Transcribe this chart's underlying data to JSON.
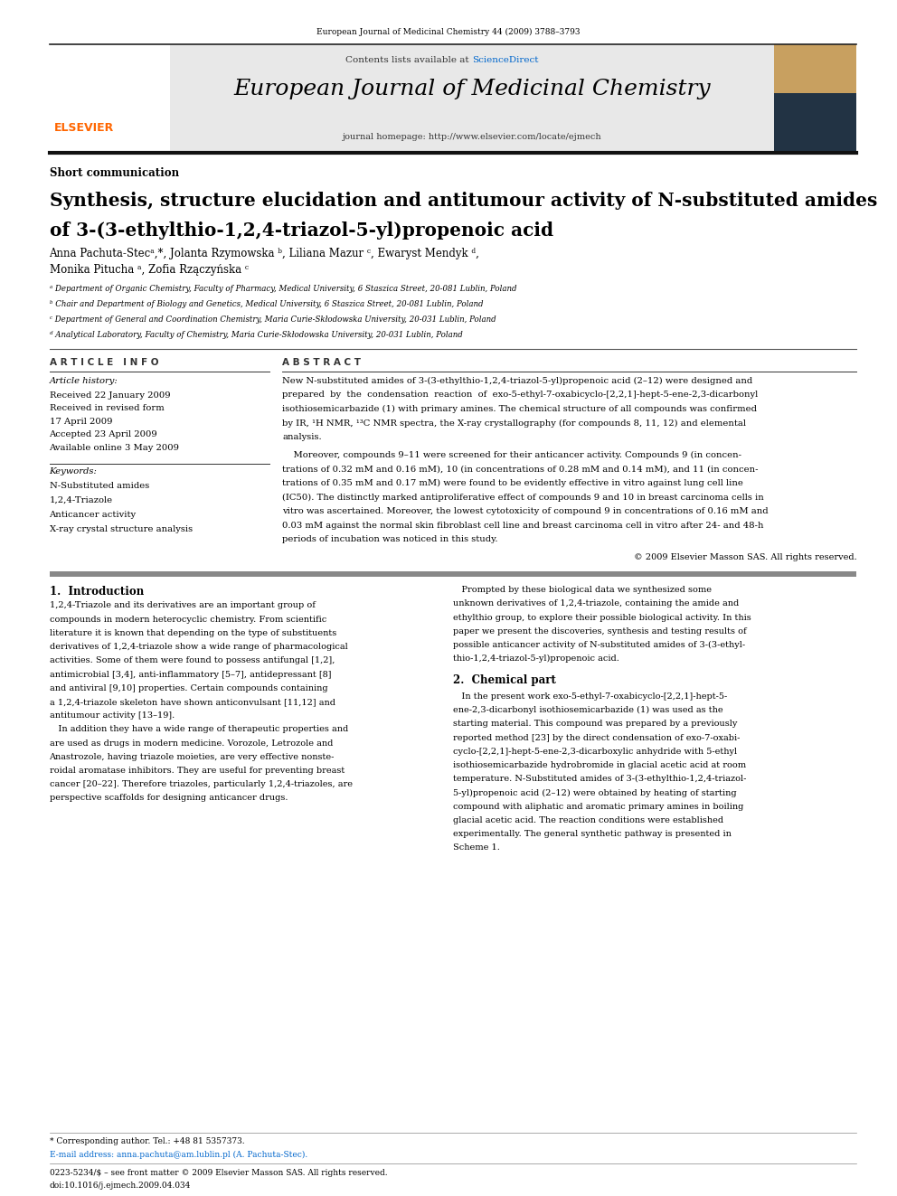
{
  "page_width": 9.92,
  "page_height": 13.23,
  "bg_color": "#ffffff",
  "top_header_text": "European Journal of Medicinal Chemistry 44 (2009) 3788–3793",
  "journal_title": "European Journal of Medicinal Chemistry",
  "contents_text": "Contents lists available at",
  "sciencedirect_text": "ScienceDirect",
  "homepage_text": "journal homepage: http://www.elsevier.com/locate/ejmech",
  "section_label": "Short communication",
  "article_title_line1": "Synthesis, structure elucidation and antitumour activity of N-substituted amides",
  "article_title_line2": "of 3-(3-ethylthio-1,2,4-triazol-5-yl)propenoic acid",
  "authors": "Anna Pachuta-Stecᵃ,*, Jolanta Rzymowska ᵇ, Liliana Mazur ᶜ, Ewaryst Mendyk ᵈ,",
  "authors2": "Monika Pitucha ᵃ, Zofia Rzączyńska ᶜ",
  "affil_a": "ᵃ Department of Organic Chemistry, Faculty of Pharmacy, Medical University, 6 Staszica Street, 20-081 Lublin, Poland",
  "affil_b": "ᵇ Chair and Department of Biology and Genetics, Medical University, 6 Staszica Street, 20-081 Lublin, Poland",
  "affil_c": "ᶜ Department of General and Coordination Chemistry, Maria Curie-Skłodowska University, 20-031 Lublin, Poland",
  "affil_d": "ᵈ Analytical Laboratory, Faculty of Chemistry, Maria Curie-Skłodowska University, 20-031 Lublin, Poland",
  "article_info_title": "A R T I C L E   I N F O",
  "abstract_title": "A B S T R A C T",
  "article_history_label": "Article history:",
  "received1": "Received 22 January 2009",
  "received2": "Received in revised form",
  "received2b": "17 April 2009",
  "accepted": "Accepted 23 April 2009",
  "available": "Available online 3 May 2009",
  "keywords_label": "Keywords:",
  "kw1": "N-Substituted amides",
  "kw2": "1,2,4-Triazole",
  "kw3": "Anticancer activity",
  "kw4": "X-ray crystal structure analysis",
  "abstract_para1": "New N-substituted amides of 3-(3-ethylthio-1,2,4-triazol-5-yl)propenoic acid (2–12) were designed and\nprepared  by  the  condensation  reaction  of  exo-5-ethyl-7-oxabicyclo-[2,2,1]-hept-5-ene-2,3-dicarbonyl\nisothiosemicarbazide (1) with primary amines. The chemical structure of all compounds was confirmed\nby IR, ¹H NMR, ¹³C NMR spectra, the X-ray crystallography (for compounds 8, 11, 12) and elemental\nanalysis.",
  "abstract_para2": "    Moreover, compounds 9–11 were screened for their anticancer activity. Compounds 9 (in concen-\ntrations of 0.32 mM and 0.16 mM), 10 (in concentrations of 0.28 mM and 0.14 mM), and 11 (in concen-\ntrations of 0.35 mM and 0.17 mM) were found to be evidently effective in vitro against lung cell line\n(IC50). The distinctly marked antiproliferative effect of compounds 9 and 10 in breast carcinoma cells in\nvitro was ascertained. Moreover, the lowest cytotoxicity of compound 9 in concentrations of 0.16 mM and\n0.03 mM against the normal skin fibroblast cell line and breast carcinoma cell in vitro after 24- and 48-h\nperiods of incubation was noticed in this study.",
  "copyright_text": "© 2009 Elsevier Masson SAS. All rights reserved.",
  "intro_title": "1.  Introduction",
  "intro_col1_lines": [
    "1,2,4-Triazole and its derivatives are an important group of",
    "compounds in modern heterocyclic chemistry. From scientific",
    "literature it is known that depending on the type of substituents",
    "derivatives of 1,2,4-triazole show a wide range of pharmacological",
    "activities. Some of them were found to possess antifungal [1,2],",
    "antimicrobial [3,4], anti-inflammatory [5–7], antidepressant [8]",
    "and antiviral [9,10] properties. Certain compounds containing",
    "a 1,2,4-triazole skeleton have shown anticonvulsant [11,12] and",
    "antitumour activity [13–19].",
    "   In addition they have a wide range of therapeutic properties and",
    "are used as drugs in modern medicine. Vorozole, Letrozole and",
    "Anastrozole, having triazole moieties, are very effective nonste-",
    "roidal aromatase inhibitors. They are useful for preventing breast",
    "cancer [20–22]. Therefore triazoles, particularly 1,2,4-triazoles, are",
    "perspective scaffolds for designing anticancer drugs."
  ],
  "intro_col2_lines": [
    "   Prompted by these biological data we synthesized some",
    "unknown derivatives of 1,2,4-triazole, containing the amide and",
    "ethylthio group, to explore their possible biological activity. In this",
    "paper we present the discoveries, synthesis and testing results of",
    "possible anticancer activity of N-substituted amides of 3-(3-ethyl-",
    "thio-1,2,4-triazol-5-yl)propenoic acid."
  ],
  "chem_part_title": "2.  Chemical part",
  "chem_col2_lines": [
    "   In the present work exo-5-ethyl-7-oxabicyclo-[2,2,1]-hept-5-",
    "ene-2,3-dicarbonyl isothiosemicarbazide (1) was used as the",
    "starting material. This compound was prepared by a previously",
    "reported method [23] by the direct condensation of exo-7-oxabi-",
    "cyclo-[2,2,1]-hept-5-ene-2,3-dicarboxylic anhydride with 5-ethyl",
    "isothiosemicarbazide hydrobromide in glacial acetic acid at room",
    "temperature. N-Substituted amides of 3-(3-ethylthio-1,2,4-triazol-",
    "5-yl)propenoic acid (2–12) were obtained by heating of starting",
    "compound with aliphatic and aromatic primary amines in boiling",
    "glacial acetic acid. The reaction conditions were established",
    "experimentally. The general synthetic pathway is presented in",
    "Scheme 1."
  ],
  "footer_star": "* Corresponding author. Tel.: +48 81 5357373.",
  "footer_email": "E-mail address: anna.pachuta@am.lublin.pl (A. Pachuta-Stec).",
  "footer_issn": "0223-5234/$ – see front matter © 2009 Elsevier Masson SAS. All rights reserved.",
  "footer_doi": "doi:10.1016/j.ejmech.2009.04.034",
  "elsevier_color": "#ff6600",
  "sciencedirect_color": "#0066cc",
  "header_bg": "#e8e8e8"
}
